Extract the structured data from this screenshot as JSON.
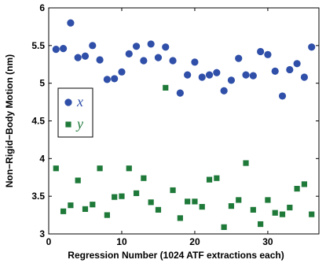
{
  "chart_data": {
    "type": "scatter",
    "xlabel": "Regression Number (1024 ATF extractions each)",
    "ylabel": "Non−Rigid−Body Motion (nm)",
    "xlim": [
      0,
      37
    ],
    "ylim": [
      3,
      6
    ],
    "xticks": [
      0,
      10,
      20,
      30
    ],
    "yticks": [
      3,
      3.5,
      4,
      4.5,
      5,
      5.5,
      6
    ],
    "ytick_labels": [
      "3",
      "3.5",
      "4",
      "4.5",
      "5",
      "5.5",
      "6"
    ],
    "grid": false,
    "legend_position": "center-left",
    "series": [
      {
        "name": "x",
        "color": "#2f4fa8",
        "marker": "circle",
        "x": [
          1,
          2,
          3,
          4,
          5,
          6,
          7,
          8,
          9,
          10,
          11,
          12,
          13,
          14,
          15,
          16,
          17,
          18,
          19,
          20,
          21,
          22,
          23,
          24,
          25,
          26,
          27,
          28,
          29,
          30,
          31,
          32,
          33,
          34,
          35,
          36
        ],
        "y": [
          5.45,
          5.46,
          5.8,
          5.34,
          5.36,
          5.5,
          5.31,
          5.05,
          5.06,
          5.15,
          5.39,
          5.49,
          5.3,
          5.52,
          5.34,
          5.48,
          5.3,
          4.87,
          5.11,
          5.28,
          5.08,
          5.11,
          5.14,
          4.9,
          5.04,
          5.33,
          5.11,
          5.1,
          5.42,
          5.38,
          5.16,
          4.83,
          5.18,
          5.26,
          5.08,
          5.48
        ]
      },
      {
        "name": "y",
        "color": "#1f7a3a",
        "marker": "square",
        "x": [
          1,
          2,
          3,
          4,
          5,
          6,
          7,
          8,
          9,
          10,
          11,
          12,
          13,
          14,
          15,
          16,
          17,
          18,
          19,
          20,
          21,
          22,
          23,
          24,
          25,
          26,
          27,
          28,
          29,
          30,
          31,
          32,
          33,
          34,
          35,
          36
        ],
        "y": [
          3.87,
          3.3,
          3.38,
          3.71,
          3.33,
          3.39,
          3.87,
          3.25,
          3.49,
          3.5,
          3.87,
          3.54,
          3.74,
          3.42,
          3.32,
          4.94,
          3.58,
          3.21,
          3.43,
          3.43,
          3.36,
          3.72,
          3.74,
          3.09,
          3.37,
          3.45,
          3.94,
          3.32,
          3.13,
          3.45,
          3.28,
          3.26,
          3.35,
          3.6,
          3.66,
          3.26
        ]
      }
    ]
  }
}
